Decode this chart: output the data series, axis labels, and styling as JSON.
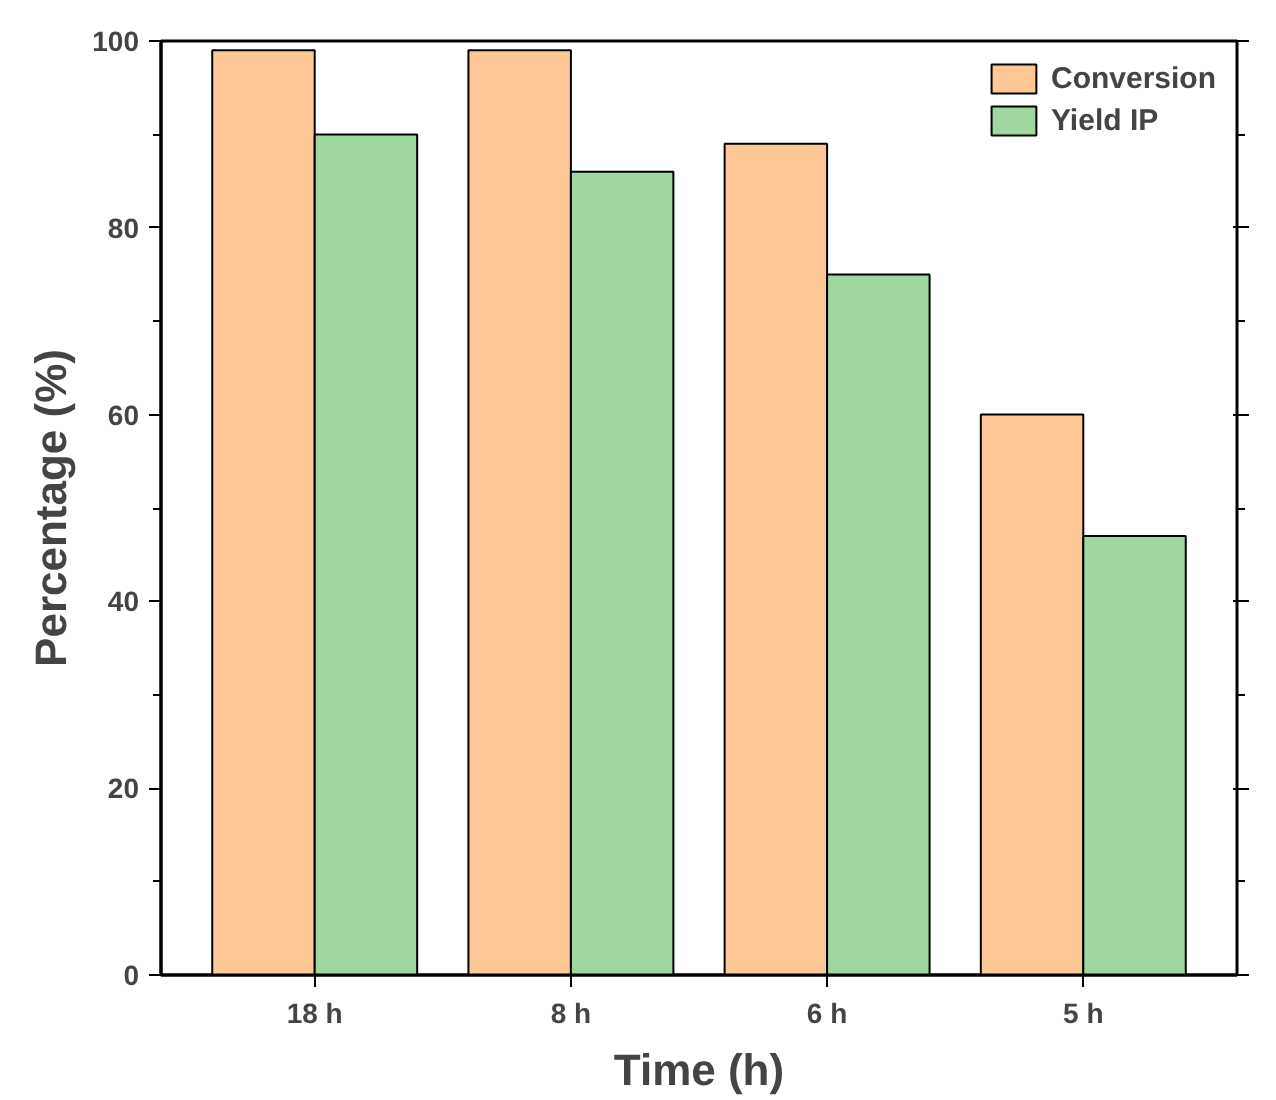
{
  "chart_data": {
    "type": "bar",
    "xlabel": "Time (h)",
    "ylabel": "Percentage (%)",
    "categories": [
      "18 h",
      "8 h",
      "6 h",
      "5 h"
    ],
    "series": [
      {
        "name": "Conversion",
        "color": "#fdc896",
        "values": [
          99,
          99,
          89,
          60
        ]
      },
      {
        "name": "Yield IP",
        "color": "#9fd89f",
        "values": [
          90,
          86,
          75,
          47
        ]
      }
    ],
    "ylim": [
      0,
      100
    ],
    "yticks": [
      0,
      20,
      40,
      60,
      80,
      100
    ],
    "grid": false,
    "legend": "top right"
  }
}
